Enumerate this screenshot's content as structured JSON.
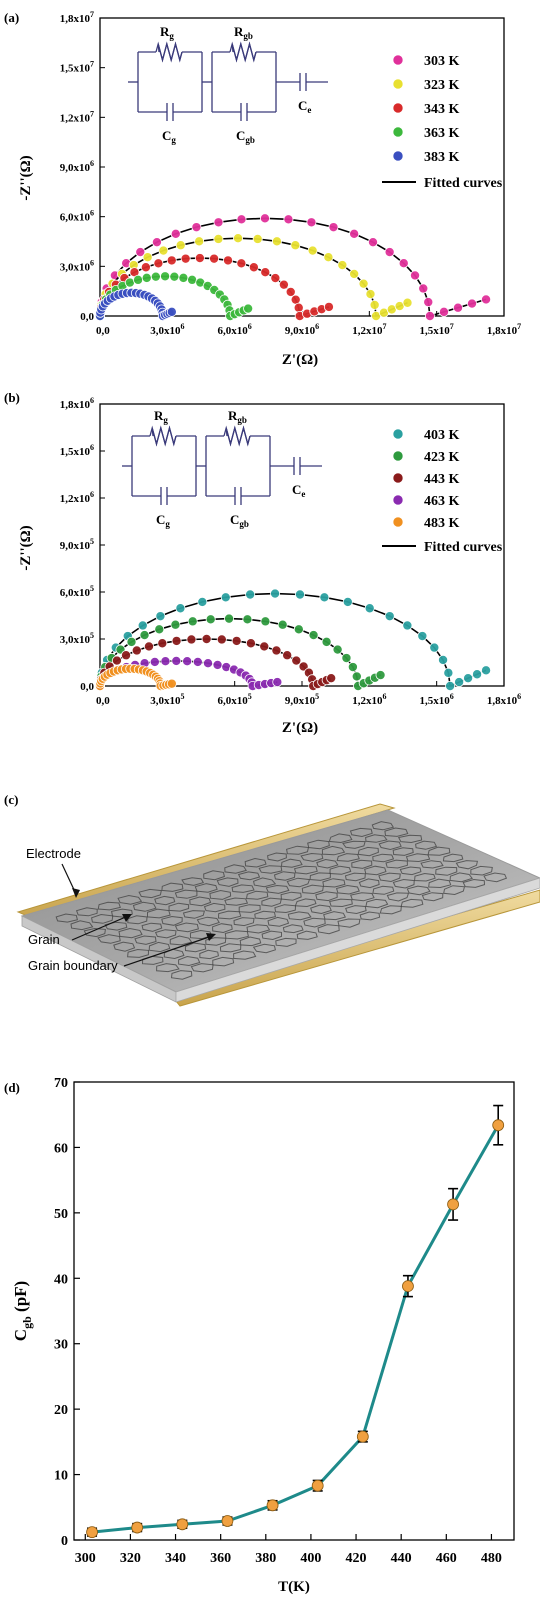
{
  "chart_data": [
    {
      "type": "scatter",
      "panel_label": "(a)",
      "xlabel": "Z'(Ω)",
      "ylabel": "-Z''(Ω)",
      "xlim": [
        0,
        18000000
      ],
      "ylim": [
        0,
        18000000
      ],
      "x_ticks": [
        0,
        3000000,
        6000000,
        9000000,
        12000000,
        15000000,
        18000000
      ],
      "x_tick_labels": [
        {
          "m": "0,0",
          "e": ""
        },
        {
          "m": "3,0x10",
          "e": "6"
        },
        {
          "m": "6,0x10",
          "e": "6"
        },
        {
          "m": "9,0x10",
          "e": "6"
        },
        {
          "m": "1,2x10",
          "e": "7"
        },
        {
          "m": "1,5x10",
          "e": "7"
        },
        {
          "m": "1,8x10",
          "e": "7"
        }
      ],
      "y_ticks": [
        0,
        3000000,
        6000000,
        9000000,
        12000000,
        15000000,
        18000000
      ],
      "y_tick_labels": [
        {
          "m": "0,0",
          "e": ""
        },
        {
          "m": "3,0x10",
          "e": "6"
        },
        {
          "m": "6,0x10",
          "e": "6"
        },
        {
          "m": "9,0x10",
          "e": "6"
        },
        {
          "m": "1,2x10",
          "e": "7"
        },
        {
          "m": "1,5x10",
          "e": "7"
        },
        {
          "m": "1,8x10",
          "e": "7"
        }
      ],
      "circuit": {
        "r1": "R",
        "r1_sub": "g",
        "r2": "R",
        "r2_sub": "gb",
        "c1": "C",
        "c1_sub": "g",
        "c2": "C",
        "c2_sub": "gb",
        "c3": "C",
        "c3_sub": "e"
      },
      "fit_label": "Fitted curves",
      "series": [
        {
          "name": "303 K",
          "color": "#e0309a",
          "semicircle_end": 14700000,
          "peak": 5900000,
          "tail_end": [
            17200000,
            1000000
          ]
        },
        {
          "name": "323 K",
          "color": "#e8e030",
          "semicircle_end": 12300000,
          "peak": 4700000,
          "tail_end": [
            13700000,
            800000
          ]
        },
        {
          "name": "343 K",
          "color": "#d82a2a",
          "semicircle_end": 8900000,
          "peak": 3500000,
          "tail_end": [
            10200000,
            550000
          ]
        },
        {
          "name": "363 K",
          "color": "#3cb83c",
          "semicircle_end": 5800000,
          "peak": 2400000,
          "tail_end": [
            6600000,
            450000
          ]
        },
        {
          "name": "383 K",
          "color": "#3a4fc0",
          "semicircle_end": 2800000,
          "peak": 1400000,
          "tail_end": [
            3200000,
            250000
          ]
        }
      ]
    },
    {
      "type": "scatter",
      "panel_label": "(b)",
      "xlabel": "Z'(Ω)",
      "ylabel": "-Z''(Ω)",
      "xlim": [
        0,
        1800000
      ],
      "ylim": [
        0,
        1800000
      ],
      "x_ticks": [
        0,
        300000,
        600000,
        900000,
        1200000,
        1500000,
        1800000
      ],
      "x_tick_labels": [
        {
          "m": "0,0",
          "e": ""
        },
        {
          "m": "3,0x10",
          "e": "5"
        },
        {
          "m": "6,0x10",
          "e": "5"
        },
        {
          "m": "9,0x10",
          "e": "5"
        },
        {
          "m": "1,2x10",
          "e": "6"
        },
        {
          "m": "1,5x10",
          "e": "6"
        },
        {
          "m": "1,8x10",
          "e": "6"
        }
      ],
      "y_ticks": [
        0,
        300000,
        600000,
        900000,
        1200000,
        1500000,
        1800000
      ],
      "y_tick_labels": [
        {
          "m": "0,0",
          "e": ""
        },
        {
          "m": "3,0x10",
          "e": "5"
        },
        {
          "m": "6,0x10",
          "e": "5"
        },
        {
          "m": "9,0x10",
          "e": "5"
        },
        {
          "m": "1,2x10",
          "e": "6"
        },
        {
          "m": "1,5x10",
          "e": "6"
        },
        {
          "m": "1,8x10",
          "e": "6"
        }
      ],
      "circuit": {
        "r1": "R",
        "r1_sub": "g",
        "r2": "R",
        "r2_sub": "gb",
        "c1": "C",
        "c1_sub": "g",
        "c2": "C",
        "c2_sub": "gb",
        "c3": "C",
        "c3_sub": "e"
      },
      "fit_label": "Fitted curves",
      "series": [
        {
          "name": "403 K",
          "color": "#2aa0a0",
          "semicircle_end": 1560000,
          "peak": 590000,
          "tail_end": [
            1720000,
            100000
          ]
        },
        {
          "name": "423 K",
          "color": "#2e9a3e",
          "semicircle_end": 1150000,
          "peak": 430000,
          "tail_end": [
            1250000,
            70000
          ]
        },
        {
          "name": "443 K",
          "color": "#8a1a1a",
          "semicircle_end": 950000,
          "peak": 300000,
          "tail_end": [
            1030000,
            50000
          ]
        },
        {
          "name": "463 K",
          "color": "#8a2ab0",
          "semicircle_end": 680000,
          "peak": 160000,
          "tail_end": [
            790000,
            25000
          ]
        },
        {
          "name": "483 K",
          "color": "#f09020",
          "semicircle_end": 270000,
          "peak": 110000,
          "tail_end": [
            320000,
            15000
          ]
        }
      ]
    },
    {
      "type": "line",
      "panel_label": "(d)",
      "xlabel": "T(K)",
      "ylabel_main": "C",
      "ylabel_sub": "gb",
      "ylabel_unit": " (pF)",
      "xlim": [
        295,
        490
      ],
      "ylim": [
        0,
        70
      ],
      "x_ticks": [
        300,
        320,
        340,
        360,
        380,
        400,
        420,
        440,
        460,
        480
      ],
      "y_ticks": [
        0,
        10,
        20,
        30,
        40,
        50,
        60,
        70
      ],
      "line_color": "#1e8a8a",
      "marker_color": "#f0a040",
      "x": [
        303,
        323,
        343,
        363,
        383,
        403,
        423,
        443,
        463,
        483
      ],
      "y": [
        1.2,
        1.9,
        2.4,
        2.9,
        5.3,
        8.3,
        15.8,
        38.8,
        51.3,
        63.4
      ],
      "error": [
        0.6,
        0.6,
        0.6,
        0.6,
        0.7,
        0.8,
        0.8,
        1.6,
        2.4,
        3.0
      ]
    }
  ],
  "schematic": {
    "panel_label": "(c)",
    "labels": {
      "electrode": "Electrode",
      "grain": "Grain",
      "grain_boundary": "Grain boundary"
    }
  }
}
